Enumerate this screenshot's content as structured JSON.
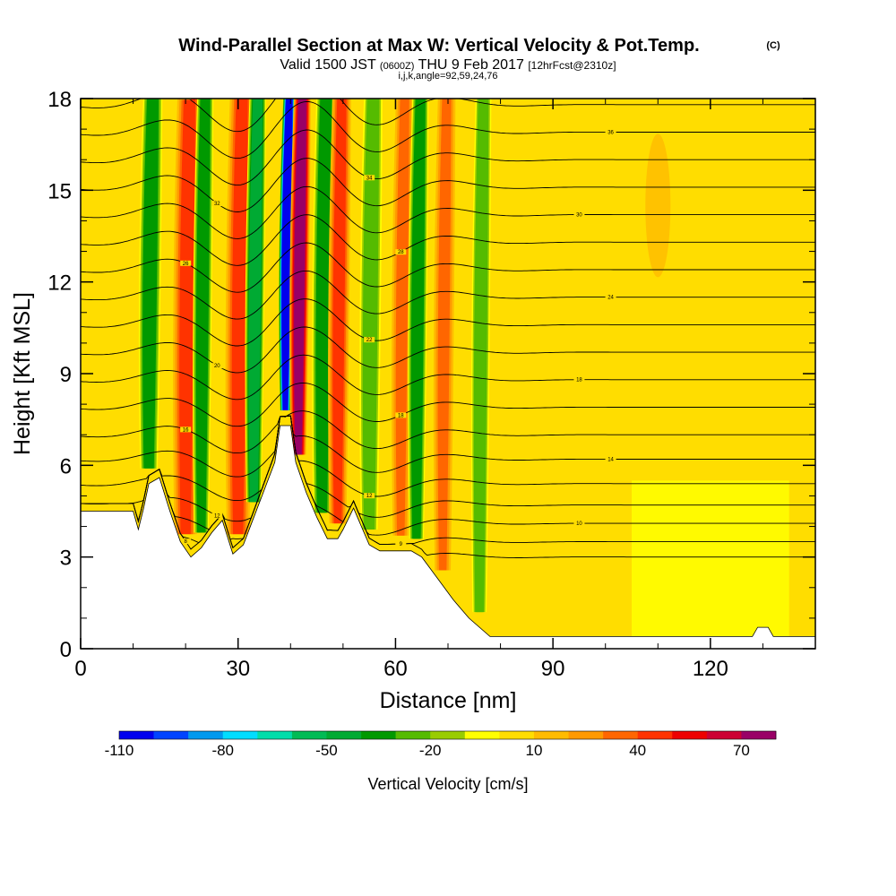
{
  "chart_data": {
    "type": "heatmap",
    "title": "Wind-Parallel Section at Max W: Vertical Velocity & Pot.Temp.",
    "title_mark": "(C)",
    "subtitle_parts": [
      "Valid 1500 JST",
      "(0600Z)",
      "THU 9 Feb 2017",
      "[12hrFcst@2310z]"
    ],
    "subtitle2": "i,j,k,angle=92,59,24,76",
    "xlabel": "Distance [nm]",
    "ylabel": "Height [Kft MSL]",
    "xlim": [
      0,
      140
    ],
    "ylim": [
      0,
      18
    ],
    "xticks": [
      0,
      30,
      60,
      90,
      120
    ],
    "yticks": [
      0,
      3,
      6,
      9,
      12,
      15,
      18
    ],
    "colorbar": {
      "label": "Vertical Velocity [cm/s]",
      "tick_labels": [
        "-110",
        "-80",
        "-50",
        "-20",
        "10",
        "40",
        "70"
      ],
      "tick_values": [
        -110,
        -80,
        -50,
        -20,
        10,
        40,
        70
      ],
      "bounds": [
        -110,
        -100,
        -90,
        -80,
        -70,
        -60,
        -50,
        -40,
        -30,
        -20,
        -10,
        0,
        10,
        20,
        30,
        40,
        50,
        60,
        70,
        80
      ],
      "colors": [
        "#0000ee",
        "#0044ff",
        "#0099ee",
        "#00ddff",
        "#00ddaa",
        "#00bb55",
        "#00aa33",
        "#009900",
        "#55bb00",
        "#99cc00",
        "#ffff00",
        "#ffdd00",
        "#ffbb00",
        "#ff9900",
        "#ff6600",
        "#ff3300",
        "#ee0000",
        "#cc0033",
        "#990066"
      ]
    },
    "bands": [
      {
        "x": 13,
        "w": 1.2,
        "v": -40
      },
      {
        "x": 20,
        "w": 1.6,
        "v": 40
      },
      {
        "x": 23,
        "w": 1.0,
        "v": -40
      },
      {
        "x": 30,
        "w": 1.6,
        "v": 40
      },
      {
        "x": 33,
        "w": 1.0,
        "v": -50
      },
      {
        "x": 39,
        "w": 0.7,
        "v": -110
      },
      {
        "x": 41.5,
        "w": 1.0,
        "v": 70
      },
      {
        "x": 46,
        "w": 1.2,
        "v": -40
      },
      {
        "x": 49,
        "w": 1.2,
        "v": 40
      },
      {
        "x": 55,
        "w": 1.2,
        "v": -30
      },
      {
        "x": 61,
        "w": 1.2,
        "v": 30
      },
      {
        "x": 64,
        "w": 1.0,
        "v": -40
      },
      {
        "x": 69,
        "w": 1.2,
        "v": 30
      },
      {
        "x": 76,
        "w": 1.0,
        "v": -30
      }
    ],
    "terrain": [
      [
        0,
        4.5
      ],
      [
        10,
        4.5
      ],
      [
        11,
        3.9
      ],
      [
        12,
        4.6
      ],
      [
        13,
        5.4
      ],
      [
        15,
        5.6
      ],
      [
        17,
        4.5
      ],
      [
        19,
        3.5
      ],
      [
        21,
        3.0
      ],
      [
        23,
        3.3
      ],
      [
        25,
        3.8
      ],
      [
        27,
        4.2
      ],
      [
        29,
        3.1
      ],
      [
        31,
        3.4
      ],
      [
        33,
        4.3
      ],
      [
        35,
        5.2
      ],
      [
        37,
        6.1
      ],
      [
        38,
        7.3
      ],
      [
        40,
        7.3
      ],
      [
        41,
        6.1
      ],
      [
        43,
        5.1
      ],
      [
        45,
        4.3
      ],
      [
        47,
        3.6
      ],
      [
        49,
        3.6
      ],
      [
        50,
        3.9
      ],
      [
        52,
        4.6
      ],
      [
        53,
        4.2
      ],
      [
        55,
        3.4
      ],
      [
        57,
        3.2
      ],
      [
        63,
        3.2
      ],
      [
        65,
        3.0
      ],
      [
        68,
        2.3
      ],
      [
        71,
        1.6
      ],
      [
        74,
        1.0
      ],
      [
        78,
        0.4
      ],
      [
        128,
        0.4
      ],
      [
        129,
        0.7
      ],
      [
        131,
        0.7
      ],
      [
        132,
        0.4
      ],
      [
        140,
        0.4
      ]
    ],
    "theta_levels": [
      {
        "base": 3.0,
        "label": "8"
      },
      {
        "base": 3.5,
        "label": "9"
      },
      {
        "base": 4.1,
        "label": "10"
      },
      {
        "base": 4.7,
        "label": "12"
      },
      {
        "base": 5.4,
        "label": "12"
      },
      {
        "base": 6.2,
        "label": "14"
      },
      {
        "base": 7.0,
        "label": "16"
      },
      {
        "base": 7.9,
        "label": "18"
      },
      {
        "base": 8.8,
        "label": "18"
      },
      {
        "base": 9.7,
        "label": "20"
      },
      {
        "base": 10.6,
        "label": "22"
      },
      {
        "base": 11.5,
        "label": "24"
      },
      {
        "base": 12.4,
        "label": "26"
      },
      {
        "base": 13.3,
        "label": "28"
      },
      {
        "base": 14.2,
        "label": "30"
      },
      {
        "base": 15.1,
        "label": "32"
      },
      {
        "base": 16.0,
        "label": "34"
      },
      {
        "base": 16.9,
        "label": "36"
      },
      {
        "base": 17.8,
        "label": "38"
      }
    ]
  }
}
